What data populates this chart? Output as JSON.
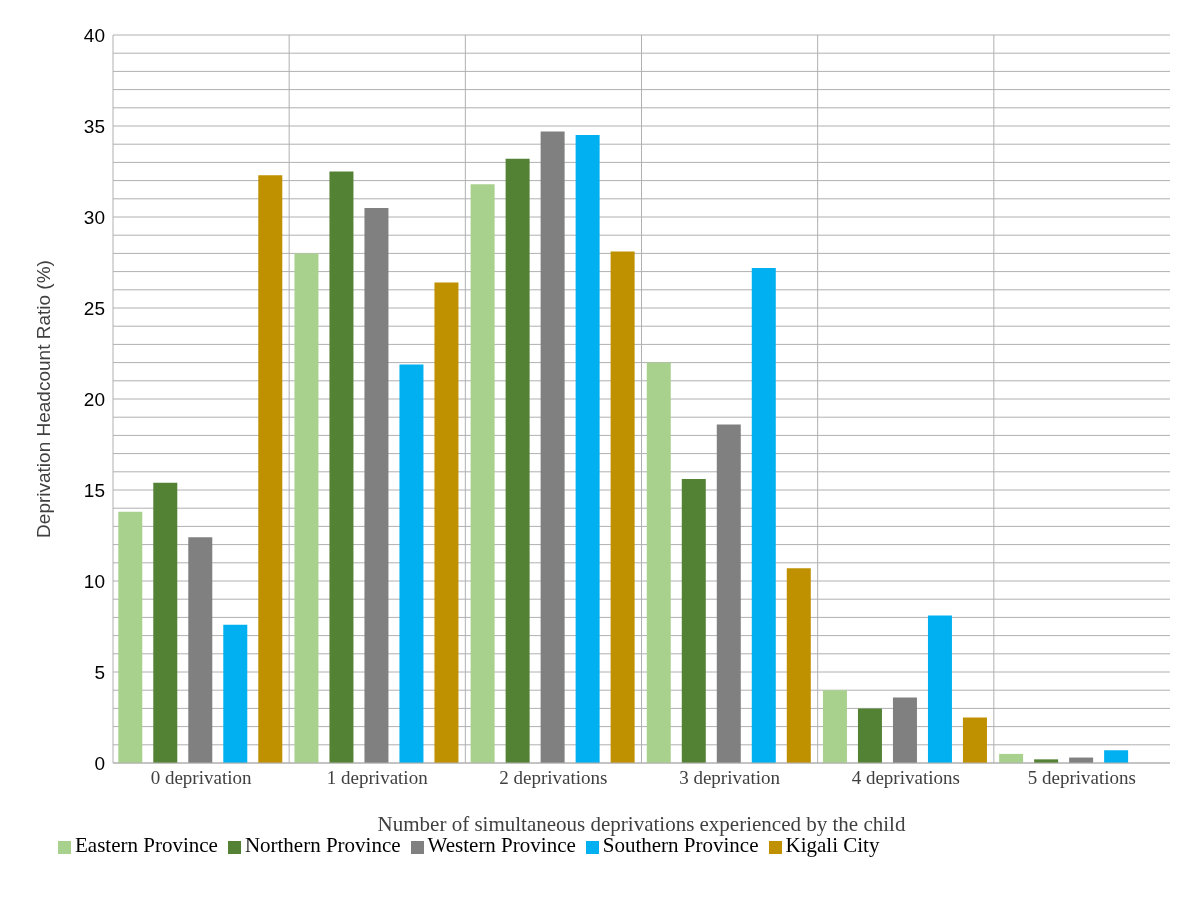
{
  "chart_data": {
    "type": "bar",
    "xlabel": "Number of simultaneous deprivations experienced by the child",
    "ylabel": "Deprivation Headcount Ratio (%)",
    "categories": [
      "0 deprivation",
      "1 deprivation",
      "2 deprivations",
      "3 deprivation",
      "4 deprivations",
      "5 deprivations"
    ],
    "series": [
      {
        "name": "Eastern Province",
        "color": "#a9d18e",
        "values": [
          13.8,
          28.0,
          31.8,
          22.0,
          4.0,
          0.5
        ]
      },
      {
        "name": "Northern Province",
        "color": "#548235",
        "values": [
          15.4,
          32.5,
          33.2,
          15.6,
          3.0,
          0.2
        ]
      },
      {
        "name": "Western Province",
        "color": "#808080",
        "values": [
          12.4,
          30.5,
          34.7,
          18.6,
          3.6,
          0.3
        ]
      },
      {
        "name": "Southern Province",
        "color": "#00b0f0",
        "values": [
          7.6,
          21.9,
          34.5,
          27.2,
          8.1,
          0.7
        ]
      },
      {
        "name": "Kigali City",
        "color": "#bf9000",
        "values": [
          32.3,
          26.4,
          28.1,
          10.7,
          2.5,
          null
        ]
      }
    ],
    "ylim": [
      0,
      40
    ],
    "yticks": [
      0,
      {
        "value": 1,
        "label": null
      },
      {
        "value": 2,
        "label": null
      },
      {
        "value": 3,
        "label": null
      },
      {
        "value": 4,
        "label": null
      },
      5,
      {
        "value": 6,
        "label": null
      },
      {
        "value": 7,
        "label": null
      },
      {
        "value": 8,
        "label": null
      },
      {
        "value": 9,
        "label": null
      },
      10,
      {
        "value": 11,
        "label": null
      },
      {
        "value": 12,
        "label": null
      },
      {
        "value": 13,
        "label": null
      },
      {
        "value": 14,
        "label": null
      },
      15,
      {
        "value": 16,
        "label": null
      },
      {
        "value": 17,
        "label": null
      },
      {
        "value": 18,
        "label": null
      },
      {
        "value": 19,
        "label": null
      },
      20,
      {
        "value": 21,
        "label": null
      },
      {
        "value": 22,
        "label": null
      },
      {
        "value": 23,
        "label": null
      },
      {
        "value": 24,
        "label": null
      },
      25,
      {
        "value": 26,
        "label": null
      },
      {
        "value": 27,
        "label": null
      },
      {
        "value": 28,
        "label": null
      },
      {
        "value": 29,
        "label": null
      },
      30,
      {
        "value": 31,
        "label": null
      },
      {
        "value": 32,
        "label": null
      },
      {
        "value": 33,
        "label": null
      },
      {
        "value": 34,
        "label": null
      },
      35,
      {
        "value": 36,
        "label": null
      },
      {
        "value": 37,
        "label": null
      },
      {
        "value": 38,
        "label": null
      },
      {
        "value": 39,
        "label": null
      },
      40
    ],
    "grid": true,
    "legend": "bottom"
  }
}
